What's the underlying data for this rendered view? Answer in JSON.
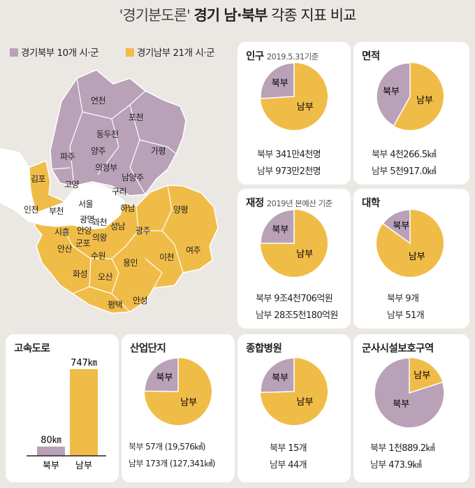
{
  "header": {
    "title_quote": "'경기분도론'",
    "title_bold": "경기 남·북부",
    "title_rest": "각종 지표 비교"
  },
  "legend": {
    "north": "경기북부 10개 시·군",
    "south": "경기남부 21개 시·군"
  },
  "colors": {
    "north": "#b9a1b8",
    "south": "#f0bc48",
    "white": "#ffffff",
    "background": "#ebe8e4"
  },
  "map": {
    "north_labels": [
      "연천",
      "포천",
      "동두천",
      "양주",
      "파주",
      "가평",
      "의정부",
      "고양",
      "남양주",
      "구리"
    ],
    "south_labels": [
      "김포",
      "부천",
      "과천",
      "하남",
      "양평",
      "광명",
      "시흥",
      "안양",
      "성남",
      "광주",
      "군포",
      "의왕",
      "안산",
      "수원",
      "여주",
      "이천",
      "용인",
      "화성",
      "오산",
      "평택",
      "안성"
    ],
    "other_labels": [
      "인천",
      "서울"
    ]
  },
  "cards": [
    {
      "key": "pop",
      "title": "인구",
      "sub": "2019.5.31기준",
      "north_label": "북부",
      "south_label": "남부",
      "north_line": {
        "label": "북부",
        "value": "341만4천명"
      },
      "south_line": {
        "label": "남부",
        "value": "973만2천명"
      }
    },
    {
      "key": "area",
      "title": "면적",
      "sub": "",
      "north_label": "북부",
      "south_label": "남부",
      "north_line": {
        "label": "북부",
        "value": "4천266.5㎢"
      },
      "south_line": {
        "label": "남부",
        "value": "5천917.0㎢"
      }
    },
    {
      "key": "finance",
      "title": "재정",
      "sub": "2019년 본예산 기준",
      "north_label": "북부",
      "south_label": "남부",
      "north_line": {
        "label": "북부",
        "value": "9조4천706억원"
      },
      "south_line": {
        "label": "남부",
        "value": "28조5천180억원"
      }
    },
    {
      "key": "univ",
      "title": "대학",
      "sub": "",
      "north_label": "북부",
      "south_label": "남부",
      "north_line": {
        "label": "북부",
        "value": "9개"
      },
      "south_line": {
        "label": "남부",
        "value": "51개"
      }
    },
    {
      "key": "highway",
      "title": "고속도로"
    },
    {
      "key": "industry",
      "title": "산업단지",
      "sub": "",
      "north_label": "북부",
      "south_label": "남부",
      "north_line": {
        "label": "북부",
        "value": "57개  (19,576㎢)"
      },
      "south_line": {
        "label": "남부",
        "value": "173개 (127,341㎢)"
      }
    },
    {
      "key": "hospital",
      "title": "종합병원",
      "sub": "",
      "north_label": "북부",
      "south_label": "남부",
      "north_line": {
        "label": "북부",
        "value": "15개"
      },
      "south_line": {
        "label": "남부",
        "value": "44개"
      }
    },
    {
      "key": "military",
      "title": "군사시설보호구역",
      "sub": "",
      "north_label": "북부",
      "south_label": "남부",
      "north_line": {
        "label": "북부",
        "value": "1천889.2㎢"
      },
      "south_line": {
        "label": "남부",
        "value": "473.9㎢"
      }
    }
  ],
  "chart_data": [
    {
      "type": "pie",
      "title": "인구",
      "subtitle": "2019.5.31기준",
      "categories": [
        "북부",
        "남부"
      ],
      "values": [
        341.4,
        973.2
      ],
      "unit": "만명"
    },
    {
      "type": "pie",
      "title": "면적",
      "categories": [
        "북부",
        "남부"
      ],
      "values": [
        4266.5,
        5917.0
      ],
      "unit": "㎢"
    },
    {
      "type": "pie",
      "title": "재정",
      "subtitle": "2019년 본예산 기준",
      "categories": [
        "북부",
        "남부"
      ],
      "values": [
        94706,
        285180
      ],
      "unit": "억원"
    },
    {
      "type": "pie",
      "title": "대학",
      "categories": [
        "북부",
        "남부"
      ],
      "values": [
        9,
        51
      ],
      "unit": "개"
    },
    {
      "type": "bar",
      "title": "고속도로",
      "categories": [
        "북부",
        "남부"
      ],
      "values": [
        80,
        747
      ],
      "value_labels": [
        "80㎞",
        "747㎞"
      ],
      "ylim": [
        0,
        747
      ]
    },
    {
      "type": "pie",
      "title": "산업단지",
      "categories": [
        "북부",
        "남부"
      ],
      "values": [
        57,
        173
      ],
      "unit": "개"
    },
    {
      "type": "pie",
      "title": "종합병원",
      "categories": [
        "북부",
        "남부"
      ],
      "values": [
        15,
        44
      ],
      "unit": "개"
    },
    {
      "type": "pie",
      "title": "군사시설보호구역",
      "categories": [
        "북부",
        "남부"
      ],
      "values": [
        1889.2,
        473.9
      ],
      "unit": "㎢"
    }
  ]
}
